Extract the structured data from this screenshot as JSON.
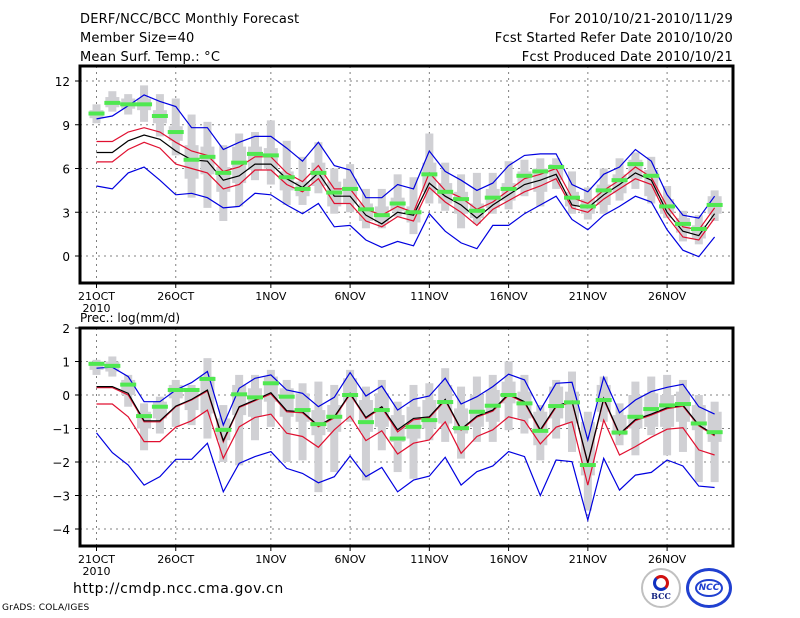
{
  "header": {
    "title": "DERF/NCC/BCC Monthly Forecast",
    "member_size": "Member Size=40",
    "variable": "Mean Surf. Temp.: °C",
    "period": "For 2010/10/21-2010/11/29",
    "started": "Fcst Started Refer Date 2010/10/20",
    "produced": "Fcst Produced Date 2010/10/21"
  },
  "footer": {
    "url": "http://cmdp.ncc.cma.gov.cn",
    "credit": "GrADS: COLA/IGES",
    "logo_bcc_text": "BCC",
    "logo_ncc_text": "NCC"
  },
  "colors": {
    "box": "#d0d0d4",
    "mean_marker": "#50e850",
    "outer_band": "#0000e0",
    "inner_band": "#e01030",
    "ensemble_mean": "#000000",
    "grid": "#808080"
  },
  "chart_data": [
    {
      "type": "line",
      "title": "Mean Surf. Temp.: °C",
      "ylabel": "°C",
      "xlabel": "",
      "ylim": [
        -2,
        13
      ],
      "yticks": [
        0,
        3,
        6,
        9,
        12
      ],
      "grid": true,
      "x_start": "2010-10-21",
      "x_days": 40,
      "x_ticks": [
        {
          "day": 0,
          "label": "21OCT",
          "sublabel": "2010"
        },
        {
          "day": 5,
          "label": "26OCT"
        },
        {
          "day": 11,
          "label": "1NOV"
        },
        {
          "day": 16,
          "label": "6NOV"
        },
        {
          "day": 21,
          "label": "11NOV"
        },
        {
          "day": 26,
          "label": "16NOV"
        },
        {
          "day": 31,
          "label": "21NOV"
        },
        {
          "day": 36,
          "label": "26NOV"
        }
      ],
      "series": [
        {
          "name": "upper-outer (blue)",
          "values": [
            9.4,
            9.6,
            10.3,
            11.05,
            10.6,
            10.25,
            8.8,
            8.8,
            7.3,
            7.8,
            8.2,
            8.2,
            7.4,
            6.5,
            7.8,
            6.2,
            5.9,
            4.0,
            4.0,
            4.9,
            4.6,
            7.2,
            5.8,
            5.2,
            4.5,
            5.0,
            6.2,
            6.9,
            7.0,
            7.0,
            4.9,
            4.4,
            5.6,
            6.1,
            7.3,
            6.5,
            4.2,
            2.8,
            2.6,
            4.1
          ]
        },
        {
          "name": "upper-inner (red)",
          "values": [
            7.85,
            7.85,
            8.5,
            8.8,
            8.5,
            7.8,
            7.2,
            6.9,
            5.8,
            6.1,
            6.8,
            6.8,
            5.7,
            5.1,
            6.2,
            4.6,
            4.6,
            3.2,
            2.8,
            3.4,
            3.0,
            5.7,
            4.5,
            4.0,
            3.2,
            3.7,
            4.5,
            5.3,
            5.6,
            6.0,
            4.0,
            3.6,
            4.5,
            5.2,
            6.1,
            5.4,
            3.4,
            2.0,
            1.8,
            3.3
          ]
        },
        {
          "name": "ensemble mean (black)",
          "values": [
            7.1,
            7.1,
            7.9,
            8.3,
            8.0,
            7.2,
            6.6,
            6.5,
            5.2,
            5.5,
            6.3,
            6.3,
            5.3,
            4.7,
            5.7,
            4.1,
            4.1,
            2.8,
            2.2,
            3.0,
            2.8,
            5.0,
            4.1,
            3.5,
            2.6,
            3.5,
            4.2,
            4.9,
            5.2,
            5.6,
            3.5,
            3.3,
            4.2,
            4.9,
            5.7,
            5.2,
            3.0,
            1.7,
            1.4,
            2.9
          ]
        },
        {
          "name": "lower-inner (red)",
          "values": [
            6.45,
            6.45,
            7.3,
            7.8,
            7.4,
            6.3,
            6.0,
            5.7,
            4.6,
            4.9,
            5.9,
            5.9,
            4.9,
            4.4,
            5.3,
            3.6,
            3.6,
            2.4,
            2.0,
            2.7,
            2.4,
            4.7,
            3.7,
            3.0,
            2.1,
            3.2,
            3.8,
            4.4,
            4.8,
            5.3,
            3.3,
            3.0,
            3.9,
            4.6,
            5.3,
            4.9,
            2.7,
            1.3,
            1.1,
            2.6
          ]
        },
        {
          "name": "lower-outer (blue)",
          "values": [
            4.8,
            4.6,
            5.7,
            6.1,
            5.2,
            4.2,
            4.3,
            4.0,
            3.3,
            3.4,
            4.3,
            4.2,
            3.5,
            2.9,
            3.6,
            2.0,
            2.1,
            1.1,
            0.6,
            1.0,
            0.7,
            2.9,
            1.7,
            0.9,
            0.5,
            2.1,
            2.1,
            2.9,
            3.5,
            4.1,
            2.5,
            1.8,
            2.8,
            3.4,
            4.1,
            3.7,
            1.8,
            0.4,
            -0.05,
            1.3
          ]
        }
      ],
      "markers": {
        "name": "member mean (green)",
        "values": [
          9.77,
          10.5,
          10.4,
          10.4,
          9.6,
          8.5,
          6.6,
          6.8,
          5.7,
          6.4,
          7.0,
          6.9,
          5.4,
          4.6,
          5.7,
          4.35,
          4.6,
          3.2,
          2.8,
          3.6,
          3.0,
          5.6,
          4.4,
          3.9,
          3.1,
          4.0,
          4.6,
          5.5,
          5.8,
          6.1,
          4.0,
          3.4,
          4.5,
          5.2,
          6.3,
          5.5,
          3.4,
          2.2,
          1.85,
          3.5
        ]
      },
      "boxes": [
        [
          9.1,
          9.45,
          10.0,
          10.4
        ],
        [
          9.9,
          10.2,
          10.9,
          11.3
        ],
        [
          9.7,
          10.1,
          10.8,
          11.1
        ],
        [
          9.2,
          10.0,
          10.8,
          11.7
        ],
        [
          8.2,
          9.1,
          10.0,
          11.1
        ],
        [
          6.9,
          7.9,
          8.9,
          10.8
        ],
        [
          4.0,
          5.3,
          7.6,
          9.7
        ],
        [
          3.3,
          5.6,
          7.5,
          9.2
        ],
        [
          2.4,
          4.4,
          6.1,
          7.6
        ],
        [
          3.4,
          5.0,
          7.5,
          8.4
        ],
        [
          5.2,
          5.9,
          7.5,
          8.5
        ],
        [
          4.9,
          6.0,
          7.4,
          9.3
        ],
        [
          3.5,
          4.5,
          5.8,
          7.9
        ],
        [
          3.5,
          4.1,
          5.1,
          6.8
        ],
        [
          4.3,
          4.8,
          6.4,
          7.8
        ],
        [
          2.9,
          3.4,
          5.1,
          6.0
        ],
        [
          3.0,
          3.6,
          5.3,
          6.3
        ],
        [
          1.9,
          2.4,
          3.6,
          4.6
        ],
        [
          1.9,
          2.3,
          3.4,
          4.6
        ],
        [
          2.7,
          3.1,
          4.0,
          5.6
        ],
        [
          1.5,
          2.3,
          3.4,
          5.4
        ],
        [
          3.6,
          4.4,
          6.4,
          8.4
        ],
        [
          3.1,
          3.6,
          5.0,
          6.4
        ],
        [
          1.9,
          2.9,
          4.4,
          5.6
        ],
        [
          2.2,
          2.6,
          3.6,
          5.7
        ],
        [
          2.9,
          3.3,
          4.6,
          5.7
        ],
        [
          3.2,
          3.8,
          5.0,
          6.5
        ],
        [
          4.1,
          4.6,
          5.8,
          6.6
        ],
        [
          3.4,
          4.4,
          6.0,
          6.7
        ],
        [
          4.6,
          5.2,
          6.3,
          6.7
        ],
        [
          2.9,
          3.4,
          4.4,
          5.8
        ],
        [
          2.5,
          2.9,
          3.9,
          4.7
        ],
        [
          2.9,
          3.5,
          4.9,
          6.0
        ],
        [
          3.8,
          4.3,
          5.6,
          6.7
        ],
        [
          4.6,
          5.3,
          6.6,
          7.1
        ],
        [
          3.6,
          4.1,
          5.9,
          6.8
        ],
        [
          2.6,
          2.9,
          3.9,
          4.8
        ],
        [
          1.0,
          1.6,
          2.6,
          3.1
        ],
        [
          0.8,
          1.2,
          2.1,
          2.8
        ],
        [
          2.4,
          2.9,
          4.1,
          4.5
        ]
      ]
    },
    {
      "type": "line",
      "title": "Prec.: log(mm/d)",
      "ylabel": "log(mm/d)",
      "xlabel": "",
      "ylim": [
        -4.5,
        2
      ],
      "yticks": [
        2,
        1,
        0,
        -1,
        -2,
        -3,
        -4
      ],
      "grid": true,
      "x_start": "2010-10-21",
      "x_days": 40,
      "x_ticks": [
        {
          "day": 0,
          "label": "21OCT",
          "sublabel": "2010"
        },
        {
          "day": 5,
          "label": "26OCT"
        },
        {
          "day": 11,
          "label": "1NOV"
        },
        {
          "day": 16,
          "label": "6NOV"
        },
        {
          "day": 21,
          "label": "11NOV"
        },
        {
          "day": 26,
          "label": "16NOV"
        },
        {
          "day": 31,
          "label": "21NOV"
        },
        {
          "day": 36,
          "label": "26NOV"
        }
      ],
      "series": [
        {
          "name": "upper-outer (blue)",
          "values": [
            0.8,
            0.83,
            0.55,
            -0.2,
            -0.2,
            0.15,
            0.37,
            0.7,
            -0.9,
            0.2,
            0.5,
            0.6,
            0.15,
            0.05,
            -0.35,
            -0.07,
            0.67,
            -0.03,
            0.27,
            -0.45,
            -0.13,
            -0.03,
            0.5,
            -0.27,
            -0.05,
            0.25,
            0.62,
            0.45,
            -0.45,
            0.35,
            0.38,
            -1.34,
            0.53,
            -0.53,
            -0.15,
            0.1,
            0.23,
            0.32,
            -0.35,
            -0.57
          ]
        },
        {
          "name": "upper-inner (red)",
          "values": [
            0.22,
            0.22,
            0.0,
            -0.8,
            -0.8,
            -0.35,
            -0.15,
            0.12,
            -1.4,
            -0.37,
            -0.17,
            0.03,
            -0.5,
            -0.53,
            -0.95,
            -0.68,
            0.02,
            -0.7,
            -0.38,
            -1.1,
            -0.74,
            -0.68,
            -0.16,
            -1.05,
            -0.66,
            -0.48,
            0.0,
            -0.23,
            -1.08,
            -0.36,
            -0.21,
            -2.05,
            -0.13,
            -1.19,
            -0.76,
            -0.6,
            -0.41,
            -0.33,
            -0.92,
            -1.22
          ]
        },
        {
          "name": "ensemble mean (black)",
          "values": [
            0.25,
            0.25,
            0.05,
            -0.77,
            -0.77,
            -0.33,
            -0.13,
            0.15,
            -1.36,
            -0.35,
            -0.15,
            0.07,
            -0.47,
            -0.5,
            -0.92,
            -0.65,
            0.05,
            -0.67,
            -0.35,
            -1.04,
            -0.7,
            -0.65,
            -0.13,
            -1.02,
            -0.63,
            -0.45,
            0.03,
            -0.2,
            -1.04,
            -0.33,
            -0.18,
            -2.02,
            -0.1,
            -1.16,
            -0.73,
            -0.57,
            -0.38,
            -0.3,
            -0.9,
            -1.19
          ]
        },
        {
          "name": "lower-inner (red)",
          "values": [
            -0.27,
            -0.27,
            -0.65,
            -1.39,
            -1.39,
            -0.96,
            -0.77,
            -0.45,
            -1.89,
            -0.95,
            -0.67,
            -0.57,
            -1.14,
            -1.24,
            -1.56,
            -1.04,
            -0.63,
            -1.36,
            -1.07,
            -1.76,
            -1.44,
            -1.34,
            -0.8,
            -1.74,
            -1.24,
            -1.04,
            -0.65,
            -0.77,
            -1.46,
            -0.96,
            -0.8,
            -2.69,
            -0.75,
            -1.79,
            -1.54,
            -1.26,
            -1.02,
            -0.98,
            -1.64,
            -1.79
          ]
        },
        {
          "name": "lower-outer (blue)",
          "values": [
            -1.13,
            -1.72,
            -2.09,
            -2.69,
            -2.44,
            -1.92,
            -1.92,
            -1.44,
            -2.89,
            -2.04,
            -1.84,
            -1.69,
            -2.19,
            -2.34,
            -2.62,
            -2.44,
            -1.82,
            -2.44,
            -2.16,
            -2.89,
            -2.54,
            -2.42,
            -1.86,
            -2.69,
            -2.29,
            -2.12,
            -1.69,
            -1.84,
            -3.0,
            -1.94,
            -1.99,
            -3.73,
            -1.89,
            -2.84,
            -2.39,
            -2.31,
            -1.94,
            -2.12,
            -2.72,
            -2.76
          ]
        }
      ],
      "markers": {
        "name": "member mean (green)",
        "values": [
          0.93,
          0.87,
          0.31,
          -0.63,
          -0.35,
          0.15,
          0.15,
          0.48,
          -1.04,
          0.02,
          -0.07,
          0.35,
          -0.05,
          -0.45,
          -0.87,
          -0.65,
          0.0,
          -0.81,
          -0.45,
          -1.3,
          -0.95,
          -0.75,
          -0.21,
          -0.99,
          -0.5,
          -0.32,
          0.0,
          -0.25,
          -1.07,
          -0.33,
          -0.22,
          -2.09,
          -0.15,
          -1.12,
          -0.65,
          -0.42,
          -0.31,
          -0.27,
          -0.85,
          -1.11
        ]
      },
      "boxes": [
        [
          0.6,
          0.75,
          1.0,
          1.05
        ],
        [
          0.55,
          0.7,
          1.0,
          1.15
        ],
        [
          -0.35,
          0.0,
          0.45,
          0.6
        ],
        [
          -1.65,
          -1.0,
          -0.5,
          -0.25
        ],
        [
          -1.15,
          -0.7,
          -0.2,
          -0.05
        ],
        [
          -0.95,
          -0.1,
          0.3,
          0.45
        ],
        [
          -0.9,
          -0.45,
          0.15,
          0.3
        ],
        [
          -1.3,
          -0.55,
          0.55,
          1.1
        ],
        [
          -2.0,
          -1.35,
          -0.7,
          -0.3
        ],
        [
          -2.1,
          -0.6,
          0.3,
          0.6
        ],
        [
          -1.35,
          -0.65,
          0.2,
          0.6
        ],
        [
          -0.95,
          -0.2,
          0.55,
          0.75
        ],
        [
          -2.0,
          -0.65,
          0.2,
          0.45
        ],
        [
          -1.95,
          -0.8,
          0.05,
          0.35
        ],
        [
          -2.9,
          -1.2,
          -0.45,
          0.4
        ],
        [
          -2.3,
          -1.1,
          -0.3,
          0.3
        ],
        [
          -0.8,
          -0.2,
          0.5,
          0.75
        ],
        [
          -2.55,
          -1.1,
          -0.15,
          0.25
        ],
        [
          -1.65,
          -0.95,
          0.05,
          0.45
        ],
        [
          -2.3,
          -1.4,
          -0.6,
          -0.2
        ],
        [
          -2.5,
          -1.3,
          -0.35,
          0.3
        ],
        [
          -1.35,
          -1.0,
          -0.15,
          0.35
        ],
        [
          -1.4,
          -0.85,
          0.3,
          0.8
        ],
        [
          -1.9,
          -1.15,
          -0.4,
          0.25
        ],
        [
          -1.4,
          -0.95,
          0.0,
          0.55
        ],
        [
          -1.4,
          -0.8,
          0.15,
          0.6
        ],
        [
          -1.05,
          -0.25,
          0.4,
          1.0
        ],
        [
          -1.15,
          -0.7,
          0.1,
          0.6
        ],
        [
          -1.95,
          -1.5,
          -0.5,
          -0.3
        ],
        [
          -1.3,
          -0.7,
          0.25,
          0.45
        ],
        [
          -1.7,
          -0.85,
          0.1,
          0.7
        ],
        [
          -3.45,
          -2.4,
          -0.8,
          -0.5
        ],
        [
          -0.8,
          -0.5,
          0.3,
          0.55
        ],
        [
          -1.5,
          -1.2,
          -0.6,
          -0.25
        ],
        [
          -1.8,
          -1.0,
          0.0,
          0.4
        ],
        [
          -1.2,
          -0.95,
          0.05,
          0.55
        ],
        [
          -1.8,
          -0.95,
          0.0,
          0.6
        ],
        [
          -1.7,
          -0.8,
          0.1,
          0.45
        ],
        [
          -2.6,
          -1.05,
          -0.3,
          0.0
        ],
        [
          -2.6,
          -1.4,
          -0.5,
          -0.2
        ]
      ]
    }
  ]
}
